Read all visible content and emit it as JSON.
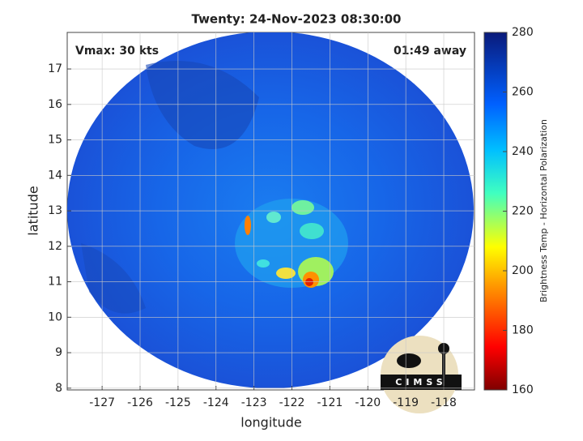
{
  "title": "Twenty: 24-Nov-2023 08:30:00",
  "annotations": {
    "vmax": "Vmax: 30 kts",
    "time_away": "01:49 away"
  },
  "map": {
    "xlabel": "longitude",
    "ylabel": "latitude",
    "xlim": [
      -127.92,
      -117.19
    ],
    "ylim": [
      7.95,
      18.03
    ],
    "xticks": [
      -127,
      -126,
      -125,
      -124,
      -123,
      -122,
      -121,
      -120,
      -119,
      -118
    ],
    "yticks": [
      8,
      9,
      10,
      11,
      12,
      13,
      14,
      15,
      16,
      17
    ],
    "grid": true
  },
  "colorbar": {
    "label": "Brightness Temp - Horizontal Polarization",
    "lim": [
      160,
      280
    ],
    "ticks": [
      160,
      180,
      200,
      220,
      240,
      260,
      280
    ]
  },
  "logo": {
    "text": "CIMSS"
  }
}
